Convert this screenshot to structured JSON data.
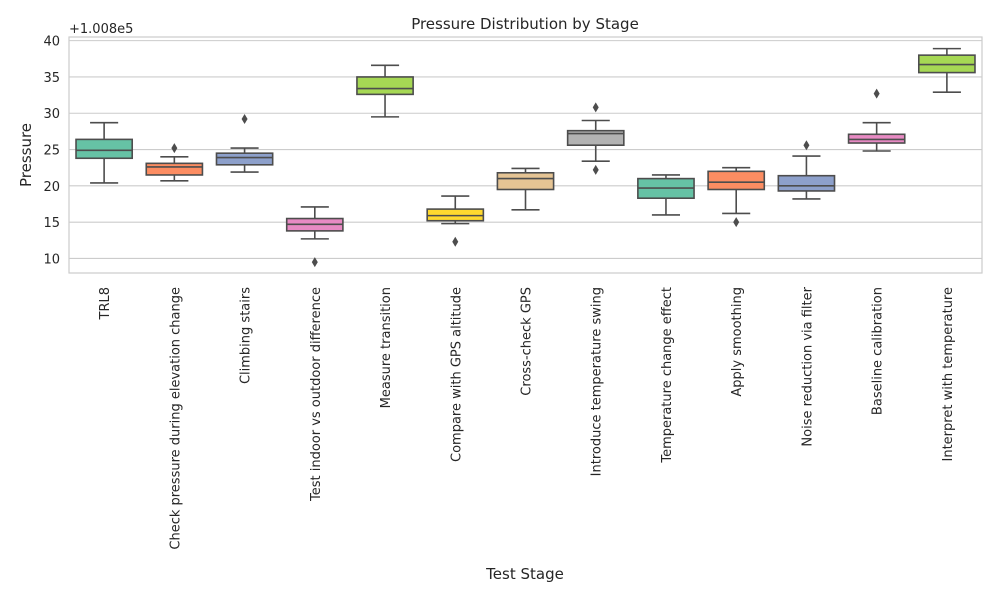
{
  "chart_data": {
    "type": "box",
    "title": "Pressure Distribution by Stage",
    "xlabel": "Test Stage",
    "ylabel": "Pressure",
    "y_offset_label": "+1.008e5",
    "y_offset": 100800,
    "ylim": [
      8,
      40.5
    ],
    "yticks": [
      10,
      15,
      20,
      25,
      30,
      35,
      40
    ],
    "grid": true,
    "legend": "none",
    "categories": [
      "TRL8",
      "Check pressure during elevation change",
      "Climbing stairs",
      "Test indoor vs outdoor difference",
      "Measure transition",
      "Compare with GPS altitude",
      "Cross-check GPS",
      "Introduce temperature swing",
      "Temperature change effect",
      "Apply smoothing",
      "Noise reduction via filter",
      "Baseline calibration",
      "Interpret with temperature"
    ],
    "boxes": [
      {
        "whisker_low": 20.4,
        "q1": 23.8,
        "median": 24.9,
        "q3": 26.4,
        "whisker_high": 28.7,
        "outliers": [],
        "color": "#66c2a5"
      },
      {
        "whisker_low": 20.7,
        "q1": 21.5,
        "median": 22.6,
        "q3": 23.1,
        "whisker_high": 24.0,
        "outliers": [
          25.2
        ],
        "color": "#fc8d62"
      },
      {
        "whisker_low": 21.9,
        "q1": 22.9,
        "median": 23.9,
        "q3": 24.5,
        "whisker_high": 25.2,
        "outliers": [
          29.2
        ],
        "color": "#8da0cb"
      },
      {
        "whisker_low": 12.7,
        "q1": 13.8,
        "median": 14.7,
        "q3": 15.5,
        "whisker_high": 17.1,
        "outliers": [
          9.5
        ],
        "color": "#e78ac3"
      },
      {
        "whisker_low": 29.5,
        "q1": 32.6,
        "median": 33.4,
        "q3": 35.0,
        "whisker_high": 36.6,
        "outliers": [],
        "color": "#a6d854"
      },
      {
        "whisker_low": 14.8,
        "q1": 15.2,
        "median": 15.9,
        "q3": 16.8,
        "whisker_high": 18.6,
        "outliers": [
          12.3
        ],
        "color": "#ffd92f"
      },
      {
        "whisker_low": 16.7,
        "q1": 19.5,
        "median": 21.0,
        "q3": 21.8,
        "whisker_high": 22.4,
        "outliers": [],
        "color": "#e5c494"
      },
      {
        "whisker_low": 23.4,
        "q1": 25.6,
        "median": 27.2,
        "q3": 27.6,
        "whisker_high": 29.0,
        "outliers": [
          30.8,
          22.2
        ],
        "color": "#b3b3b3"
      },
      {
        "whisker_low": 16.0,
        "q1": 18.3,
        "median": 19.7,
        "q3": 21.0,
        "whisker_high": 21.5,
        "outliers": [],
        "color": "#66c2a5"
      },
      {
        "whisker_low": 16.2,
        "q1": 19.5,
        "median": 20.5,
        "q3": 22.0,
        "whisker_high": 22.5,
        "outliers": [
          15.0
        ],
        "color": "#fc8d62"
      },
      {
        "whisker_low": 18.2,
        "q1": 19.3,
        "median": 20.0,
        "q3": 21.4,
        "whisker_high": 24.1,
        "outliers": [
          25.6
        ],
        "color": "#8da0cb"
      },
      {
        "whisker_low": 24.8,
        "q1": 25.9,
        "median": 26.4,
        "q3": 27.1,
        "whisker_high": 28.7,
        "outliers": [
          32.7
        ],
        "color": "#e78ac3"
      },
      {
        "whisker_low": 32.9,
        "q1": 35.6,
        "median": 36.7,
        "q3": 38.0,
        "whisker_high": 38.9,
        "outliers": [],
        "color": "#a6d854"
      }
    ]
  }
}
